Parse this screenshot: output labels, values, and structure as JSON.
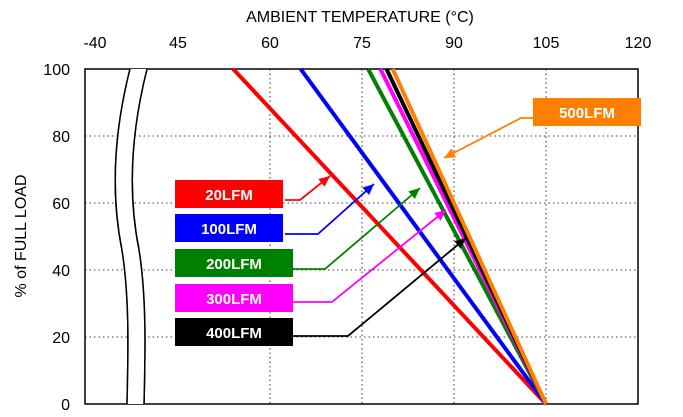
{
  "chart_data": {
    "type": "line",
    "xlabel": "AMBIENT TEMPERATURE (°C)",
    "ylabel": "% of FULL LOAD",
    "x_ticks": [
      "-40",
      "45",
      "60",
      "75",
      "90",
      "105",
      "120"
    ],
    "y_ticks": [
      "0",
      "20",
      "40",
      "60",
      "80",
      "100"
    ],
    "xlim": [
      -40,
      120
    ],
    "x_axis_break": "between -40 and 45",
    "ylim": [
      0,
      100
    ],
    "grid": "dotted",
    "series": [
      {
        "name": "20LFM",
        "color": "#ff0000",
        "points": [
          [
            54,
            100
          ],
          [
            105,
            0
          ]
        ]
      },
      {
        "name": "100LFM",
        "color": "#0000ff",
        "points": [
          [
            65,
            100
          ],
          [
            105,
            0
          ]
        ]
      },
      {
        "name": "200LFM",
        "color": "#008000",
        "points": [
          [
            76,
            100
          ],
          [
            105,
            0
          ]
        ]
      },
      {
        "name": "300LFM",
        "color": "#ff00ff",
        "points": [
          [
            78,
            100
          ],
          [
            105,
            0
          ]
        ]
      },
      {
        "name": "400LFM",
        "color": "#000000",
        "points": [
          [
            79,
            100
          ],
          [
            105,
            0
          ]
        ]
      },
      {
        "name": "500LFM",
        "color": "#ff7f00",
        "points": [
          [
            80,
            100
          ],
          [
            105,
            0
          ]
        ]
      }
    ]
  }
}
